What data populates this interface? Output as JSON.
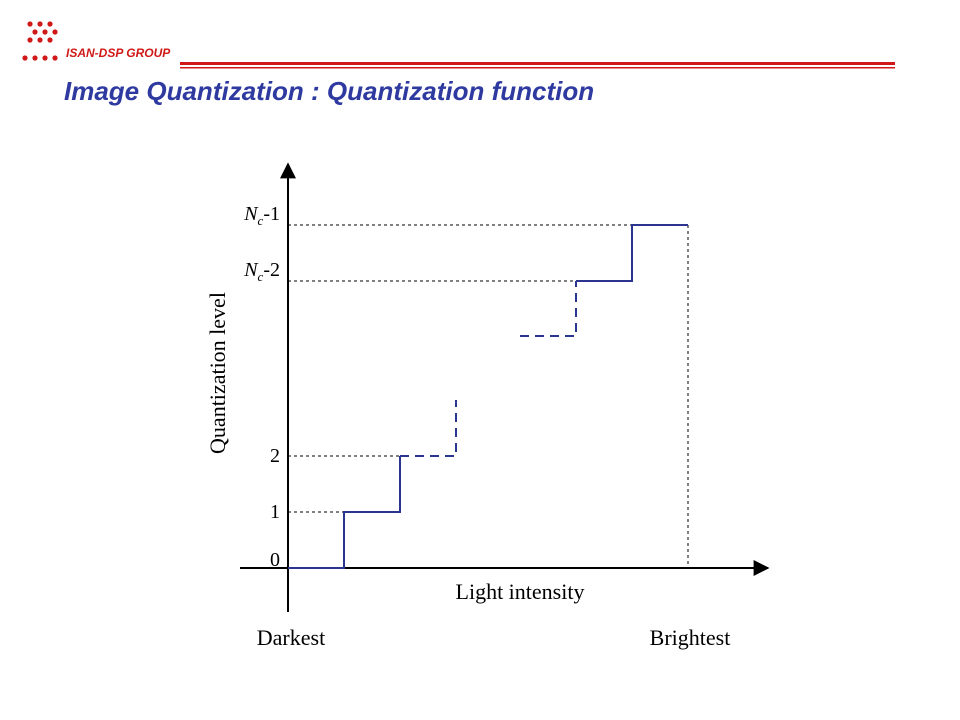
{
  "header": {
    "group_label": "ISAN-DSP GROUP",
    "title": "Image Quantization : Quantization function"
  },
  "diagram": {
    "y_axis_label": "Quantization level",
    "x_axis_label": "Light intensity",
    "x_start_label": "Darkest",
    "x_end_label": "Brightest",
    "level_0": "0",
    "level_1": "1",
    "level_2": "2",
    "level_nc_minus_2": {
      "base": "N",
      "sub": "c",
      "suffix": "-2"
    },
    "level_nc_minus_1": {
      "base": "N",
      "sub": "c",
      "suffix": "-1"
    }
  },
  "colors": {
    "accent_red": "#d01818",
    "title_blue": "#2f3aa0",
    "step_blue": "#2b3590",
    "axis": "#000000"
  }
}
